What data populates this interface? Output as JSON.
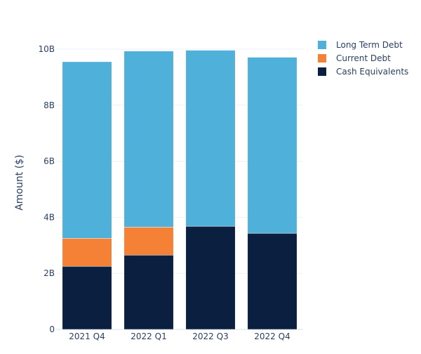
{
  "chart_data": {
    "type": "bar",
    "barmode": "stack",
    "title": "",
    "xlabel": "",
    "ylabel": "Amount ($)",
    "categories": [
      "2021 Q4",
      "2022 Q1",
      "2022 Q3",
      "2022 Q4"
    ],
    "series": [
      {
        "name": "Cash Equivalents",
        "color": "#0b1f40",
        "values": [
          2.25,
          2.65,
          3.68,
          3.43
        ]
      },
      {
        "name": "Current Debt",
        "color": "#f58136",
        "values": [
          1.0,
          1.0,
          0.0,
          0.0
        ]
      },
      {
        "name": "Long Term Debt",
        "color": "#4fb0da",
        "values": [
          6.3,
          6.28,
          6.28,
          6.28
        ]
      }
    ],
    "legend_order": [
      "Long Term Debt",
      "Current Debt",
      "Cash Equivalents"
    ],
    "yticks": [
      0,
      2,
      4,
      6,
      8,
      10
    ],
    "ytick_labels": [
      "0",
      "2B",
      "4B",
      "6B",
      "8B",
      "10B"
    ],
    "ylim": [
      0,
      10.5
    ],
    "grid": true,
    "legend_position": "top-right"
  }
}
